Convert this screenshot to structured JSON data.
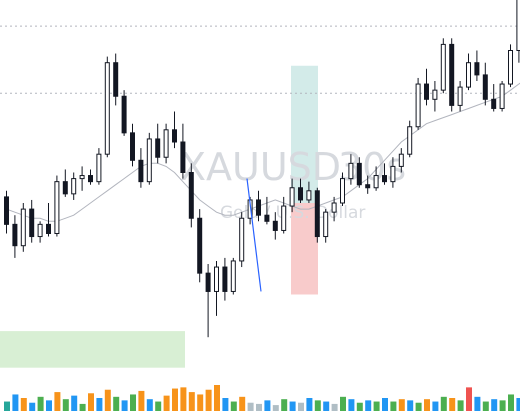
{
  "chart_data": {
    "type": "candlestick",
    "title": "",
    "watermark": {
      "symbol": "XAUUSD",
      "interval": "30s",
      "description": "Gold / U.S. Dollar"
    },
    "xlabel": "",
    "ylabel": "",
    "ylim": [
      0,
      100
    ],
    "grid": false,
    "dashed_levels": [
      98,
      76
    ],
    "moving_average": {
      "color": "#b2b5be",
      "values": [
        38,
        37,
        36,
        35,
        35,
        34,
        34,
        35,
        36,
        38,
        40,
        42,
        44,
        46,
        48,
        50,
        52,
        53,
        53,
        52,
        50,
        47,
        44,
        41,
        39,
        37,
        36,
        36,
        37,
        38,
        39,
        40,
        41,
        40,
        39,
        38,
        38,
        39,
        40,
        41,
        42,
        44,
        46,
        48,
        51,
        54,
        57,
        60,
        62,
        64,
        66,
        67,
        68,
        69,
        70,
        71,
        72,
        73,
        74,
        75,
        77,
        79,
        81
      ]
    },
    "candles": [
      {
        "o": 42,
        "h": 44,
        "l": 30,
        "c": 33
      },
      {
        "o": 33,
        "h": 36,
        "l": 22,
        "c": 26
      },
      {
        "o": 26,
        "h": 40,
        "l": 24,
        "c": 38
      },
      {
        "o": 38,
        "h": 41,
        "l": 27,
        "c": 29
      },
      {
        "o": 29,
        "h": 34,
        "l": 27,
        "c": 33
      },
      {
        "o": 33,
        "h": 40,
        "l": 29,
        "c": 30
      },
      {
        "o": 30,
        "h": 49,
        "l": 29,
        "c": 47
      },
      {
        "o": 47,
        "h": 51,
        "l": 42,
        "c": 43
      },
      {
        "o": 43,
        "h": 50,
        "l": 41,
        "c": 48
      },
      {
        "o": 48,
        "h": 52,
        "l": 44,
        "c": 49
      },
      {
        "o": 49,
        "h": 51,
        "l": 46,
        "c": 47
      },
      {
        "o": 47,
        "h": 58,
        "l": 46,
        "c": 56
      },
      {
        "o": 56,
        "h": 88,
        "l": 55,
        "c": 86
      },
      {
        "o": 86,
        "h": 89,
        "l": 72,
        "c": 75
      },
      {
        "o": 75,
        "h": 77,
        "l": 62,
        "c": 63
      },
      {
        "o": 63,
        "h": 66,
        "l": 52,
        "c": 54
      },
      {
        "o": 54,
        "h": 58,
        "l": 45,
        "c": 47
      },
      {
        "o": 47,
        "h": 63,
        "l": 46,
        "c": 61
      },
      {
        "o": 61,
        "h": 66,
        "l": 53,
        "c": 55
      },
      {
        "o": 55,
        "h": 66,
        "l": 53,
        "c": 64
      },
      {
        "o": 64,
        "h": 70,
        "l": 58,
        "c": 60
      },
      {
        "o": 60,
        "h": 66,
        "l": 48,
        "c": 50
      },
      {
        "o": 50,
        "h": 53,
        "l": 32,
        "c": 35
      },
      {
        "o": 35,
        "h": 38,
        "l": 14,
        "c": 17
      },
      {
        "o": 17,
        "h": 20,
        "l": -4,
        "c": 11
      },
      {
        "o": 11,
        "h": 21,
        "l": 3,
        "c": 19
      },
      {
        "o": 19,
        "h": 22,
        "l": 8,
        "c": 11
      },
      {
        "o": 11,
        "h": 22,
        "l": 10,
        "c": 21
      },
      {
        "o": 21,
        "h": 37,
        "l": 19,
        "c": 35
      },
      {
        "o": 35,
        "h": 42,
        "l": 33,
        "c": 41
      },
      {
        "o": 41,
        "h": 44,
        "l": 34,
        "c": 36
      },
      {
        "o": 36,
        "h": 42,
        "l": 33,
        "c": 34
      },
      {
        "o": 34,
        "h": 37,
        "l": 28,
        "c": 31
      },
      {
        "o": 31,
        "h": 42,
        "l": 30,
        "c": 39
      },
      {
        "o": 39,
        "h": 48,
        "l": 37,
        "c": 45
      },
      {
        "o": 45,
        "h": 48,
        "l": 40,
        "c": 41
      },
      {
        "o": 41,
        "h": 47,
        "l": 40,
        "c": 44
      },
      {
        "o": 44,
        "h": 45,
        "l": 27,
        "c": 29
      },
      {
        "o": 29,
        "h": 38,
        "l": 27,
        "c": 37
      },
      {
        "o": 37,
        "h": 42,
        "l": 34,
        "c": 40
      },
      {
        "o": 40,
        "h": 50,
        "l": 39,
        "c": 48
      },
      {
        "o": 48,
        "h": 56,
        "l": 46,
        "c": 53
      },
      {
        "o": 53,
        "h": 55,
        "l": 45,
        "c": 46
      },
      {
        "o": 46,
        "h": 49,
        "l": 43,
        "c": 45
      },
      {
        "o": 45,
        "h": 52,
        "l": 44,
        "c": 49
      },
      {
        "o": 49,
        "h": 53,
        "l": 46,
        "c": 47
      },
      {
        "o": 47,
        "h": 55,
        "l": 45,
        "c": 52
      },
      {
        "o": 52,
        "h": 58,
        "l": 50,
        "c": 56
      },
      {
        "o": 56,
        "h": 67,
        "l": 55,
        "c": 65
      },
      {
        "o": 65,
        "h": 81,
        "l": 64,
        "c": 79
      },
      {
        "o": 79,
        "h": 84,
        "l": 72,
        "c": 74
      },
      {
        "o": 74,
        "h": 80,
        "l": 70,
        "c": 77
      },
      {
        "o": 77,
        "h": 94,
        "l": 76,
        "c": 92
      },
      {
        "o": 92,
        "h": 94,
        "l": 70,
        "c": 72
      },
      {
        "o": 72,
        "h": 80,
        "l": 70,
        "c": 78
      },
      {
        "o": 78,
        "h": 89,
        "l": 77,
        "c": 86
      },
      {
        "o": 86,
        "h": 90,
        "l": 80,
        "c": 82
      },
      {
        "o": 82,
        "h": 86,
        "l": 72,
        "c": 74
      },
      {
        "o": 74,
        "h": 79,
        "l": 70,
        "c": 71
      },
      {
        "o": 71,
        "h": 80,
        "l": 70,
        "c": 79
      },
      {
        "o": 79,
        "h": 92,
        "l": 78,
        "c": 90
      },
      {
        "o": 90,
        "h": 112,
        "l": 86,
        "c": 108
      },
      {
        "o": 108,
        "h": 112,
        "l": 98,
        "c": 104
      }
    ],
    "volume": {
      "values": [
        40,
        70,
        55,
        35,
        60,
        45,
        80,
        50,
        65,
        30,
        75,
        55,
        90,
        60,
        45,
        70,
        85,
        50,
        40,
        65,
        95,
        100,
        80,
        70,
        90,
        110,
        55,
        40,
        60,
        35,
        30,
        45,
        25,
        50,
        40,
        35,
        55,
        45,
        40,
        30,
        60,
        50,
        35,
        45,
        40,
        55,
        40,
        50,
        45,
        35,
        50,
        40,
        60,
        55,
        45,
        100,
        60,
        40,
        50,
        45,
        70,
        55,
        45
      ],
      "colors": [
        "#26a69a",
        "#2196f3",
        "#f7931a",
        "#2196f3",
        "#4caf50",
        "#2196f3",
        "#f7931a",
        "#4caf50",
        "#2196f3",
        "#4caf50",
        "#f7931a",
        "#2196f3",
        "#f7931a",
        "#4caf50",
        "#2196f3",
        "#4caf50",
        "#f7931a",
        "#2196f3",
        "#4caf50",
        "#f7931a",
        "#f7931a",
        "#f7931a",
        "#f7931a",
        "#f7931a",
        "#f7931a",
        "#f7931a",
        "#2196f3",
        "#4caf50",
        "#f7931a",
        "#b0bec5",
        "#b0bec5",
        "#2196f3",
        "#b0bec5",
        "#4caf50",
        "#2196f3",
        "#b0bec5",
        "#2196f3",
        "#4caf50",
        "#2196f3",
        "#b0bec5",
        "#4caf50",
        "#2196f3",
        "#4caf50",
        "#2196f3",
        "#4caf50",
        "#2196f3",
        "#4caf50",
        "#f7931a",
        "#2196f3",
        "#4caf50",
        "#f7931a",
        "#2196f3",
        "#4caf50",
        "#f7931a",
        "#4caf50",
        "#ef5350",
        "#2196f3",
        "#4caf50",
        "#2196f3",
        "#4caf50",
        "#4caf50",
        "#2196f3",
        "#4caf50"
      ]
    },
    "zones": [
      {
        "name": "profit-zone",
        "from": 85,
        "to": 40,
        "color": "#d3ebe9"
      },
      {
        "name": "loss-zone",
        "from": 40,
        "to": 10,
        "color": "#f8cbcb"
      },
      {
        "name": "demand-zone",
        "from": -2,
        "to": -14,
        "color": "#d8efd4"
      }
    ],
    "trend_line": {
      "from": 48,
      "to": 11,
      "color": "#2962ff"
    }
  }
}
